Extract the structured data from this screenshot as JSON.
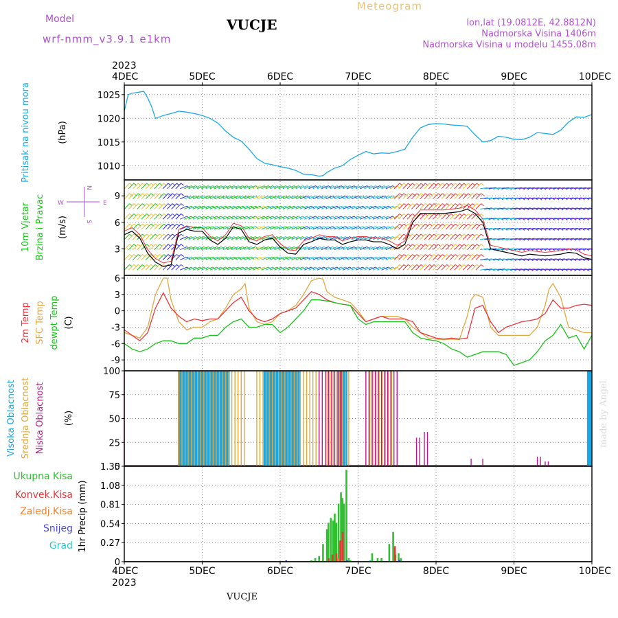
{
  "header": {
    "title": "VUCJE",
    "chart_kind": "Meteogram",
    "model_label": "Model",
    "model_name": "wrf-nmm_v3.9.1  e1km",
    "lonlat": "lon,lat (19.0812E, 42.8812N)",
    "altitude": "Nadmorska Visina 1406m",
    "altitude_model": "Nadmorska Visina u modelu 1455.08m",
    "footer_station": "VUCJE",
    "watermark": "made by Angel"
  },
  "colors": {
    "pressure": "#1aa7e6",
    "wind_label": "#19c21a",
    "temp2m": "#e8353a",
    "sfctemp": "#e0a740",
    "dewpt": "#19c21a",
    "cloud_high": "#1aa7e6",
    "cloud_mid": "#e0a740",
    "cloud_low": "#c0188c",
    "precip_total": "#2fbf2f",
    "precip_conv": "#e8353a",
    "precip_frozen": "#f08030",
    "precip_snow": "#4a4ad8",
    "precip_hail": "#30c8c8",
    "purple": "#b050d0"
  },
  "time_axis": {
    "year": "2023",
    "ticks": [
      "4DEC",
      "5DEC",
      "6DEC",
      "7DEC",
      "8DEC",
      "9DEC",
      "10DEC"
    ]
  },
  "chart_data": [
    {
      "type": "line",
      "panel": "pressure",
      "ylabel": "Pritisak na nivou mora",
      "unit": "(hPa)",
      "yticks": [
        1010,
        1015,
        1020,
        1025
      ],
      "ylim": [
        1007,
        1027
      ],
      "x_unit": "days since 4DEC 00UTC",
      "series": [
        {
          "name": "Pritisak na nivou mora",
          "x": [
            0,
            0.05,
            0.1,
            0.15,
            0.25,
            0.3,
            0.35,
            0.4,
            0.5,
            0.6,
            0.7,
            0.8,
            0.9,
            1.0,
            1.1,
            1.2,
            1.3,
            1.4,
            1.5,
            1.6,
            1.7,
            1.8,
            1.9,
            2.0,
            2.1,
            2.2,
            2.3,
            2.4,
            2.5,
            2.55,
            2.6,
            2.7,
            2.8,
            2.9,
            3.0,
            3.1,
            3.2,
            3.3,
            3.4,
            3.5,
            3.6,
            3.7,
            3.8,
            3.9,
            4.0,
            4.1,
            4.2,
            4.3,
            4.4,
            4.5,
            4.6,
            4.7,
            4.8,
            4.9,
            5.0,
            5.1,
            5.2,
            5.3,
            5.4,
            5.5,
            5.6,
            5.7,
            5.8,
            5.9,
            6.0
          ],
          "y": [
            1021.5,
            1025.0,
            1025.3,
            1025.4,
            1025.7,
            1024.3,
            1022.5,
            1020.0,
            1020.6,
            1021.0,
            1021.5,
            1021.3,
            1021.0,
            1020.6,
            1020.0,
            1019.0,
            1017.3,
            1016.0,
            1015.2,
            1013.5,
            1011.5,
            1010.5,
            1010.2,
            1009.8,
            1009.5,
            1009.0,
            1008.2,
            1008.1,
            1007.8,
            1007.9,
            1008.6,
            1009.5,
            1010.0,
            1011.3,
            1012.2,
            1013.0,
            1012.5,
            1012.7,
            1012.6,
            1013.0,
            1013.5,
            1016.0,
            1018.0,
            1018.7,
            1018.9,
            1018.8,
            1018.6,
            1018.5,
            1018.3,
            1016.5,
            1015.0,
            1015.3,
            1016.2,
            1016.0,
            1015.6,
            1015.5,
            1016.0,
            1017.0,
            1016.8,
            1016.6,
            1017.5,
            1019.2,
            1020.3,
            1020.2,
            1020.8
          ]
        }
      ]
    },
    {
      "type": "line",
      "panel": "wind",
      "ylabel": "10m Vjetar Brzina i Pravac",
      "unit": "(m/s)",
      "yticks": [
        3,
        6,
        9
      ],
      "ylim": [
        0,
        10.8
      ],
      "compass_labels": {
        "n": "N",
        "s": "S",
        "w": "W",
        "e": "E"
      },
      "series": [
        {
          "name": "speed",
          "x": [
            0,
            0.1,
            0.2,
            0.3,
            0.4,
            0.5,
            0.6,
            0.7,
            0.8,
            0.9,
            1.0,
            1.1,
            1.2,
            1.3,
            1.4,
            1.5,
            1.6,
            1.7,
            1.8,
            1.9,
            2.0,
            2.1,
            2.2,
            2.3,
            2.4,
            2.5,
            2.6,
            2.7,
            2.8,
            2.9,
            3.0,
            3.1,
            3.2,
            3.3,
            3.4,
            3.5,
            3.6,
            3.7,
            3.8,
            3.9,
            4.0,
            4.1,
            4.2,
            4.3,
            4.4,
            4.5,
            4.6,
            4.7,
            4.8,
            4.9,
            5.0,
            5.1,
            5.2,
            5.3,
            5.4,
            5.5,
            5.6,
            5.7,
            5.8,
            5.9,
            6.0
          ],
          "y": [
            4.6,
            5.0,
            4.2,
            2.5,
            1.5,
            1.0,
            1.2,
            4.8,
            5.2,
            5.0,
            5.0,
            4.0,
            3.5,
            4.2,
            5.5,
            5.2,
            3.8,
            3.5,
            4.0,
            4.2,
            3.2,
            2.5,
            2.4,
            3.5,
            3.8,
            4.2,
            4.0,
            4.0,
            3.5,
            3.8,
            4.0,
            4.0,
            3.8,
            3.8,
            3.5,
            3.0,
            3.5,
            6.0,
            7.0,
            7.0,
            7.0,
            7.0,
            7.1,
            7.2,
            7.5,
            7.0,
            6.0,
            3.0,
            2.8,
            2.6,
            2.4,
            2.2,
            2.4,
            2.3,
            2.2,
            2.3,
            2.4,
            2.6,
            2.5,
            2.0,
            1.8
          ]
        }
      ]
    },
    {
      "type": "line",
      "panel": "temperature",
      "ylabel": "2m Temp / SFC Temp / dewpt Temp",
      "unit": "(C)",
      "yticks": [
        -9,
        -6,
        -3,
        0,
        3,
        6
      ],
      "ylim": [
        -11,
        6.5
      ],
      "series": [
        {
          "name": "2m Temp",
          "x": [
            0,
            0.1,
            0.2,
            0.3,
            0.4,
            0.5,
            0.6,
            0.7,
            0.8,
            0.9,
            1.0,
            1.1,
            1.2,
            1.3,
            1.4,
            1.5,
            1.6,
            1.7,
            1.8,
            1.9,
            2.0,
            2.1,
            2.2,
            2.3,
            2.4,
            2.5,
            2.6,
            2.7,
            2.8,
            2.9,
            3.0,
            3.1,
            3.2,
            3.3,
            3.4,
            3.5,
            3.6,
            3.7,
            3.8,
            3.9,
            4.0,
            4.1,
            4.2,
            4.3,
            4.4,
            4.5,
            4.6,
            4.7,
            4.8,
            4.9,
            5.0,
            5.1,
            5.2,
            5.3,
            5.4,
            5.5,
            5.6,
            5.7,
            5.8,
            5.9,
            6.0
          ],
          "y": [
            -3.5,
            -4.5,
            -5.5,
            -4.0,
            0.5,
            3.3,
            0.5,
            -1.0,
            -2.0,
            -1.5,
            -1.8,
            -1.5,
            -1.5,
            0.0,
            1.5,
            2.5,
            0.0,
            -1.5,
            -2.0,
            -1.5,
            -0.5,
            0.0,
            0.5,
            2.0,
            3.5,
            3.0,
            2.0,
            1.5,
            1.2,
            1.0,
            -0.5,
            -2.0,
            -1.5,
            -1.0,
            -1.5,
            -1.5,
            -1.5,
            -2.0,
            -4.0,
            -4.5,
            -5.0,
            -5.2,
            -5.0,
            -5.2,
            -5.0,
            0.5,
            1.0,
            -2.0,
            -4.0,
            -3.0,
            -2.5,
            -2.0,
            -1.8,
            -1.5,
            -0.5,
            2.0,
            0.5,
            0.5,
            1.0,
            1.2,
            1.0
          ]
        },
        {
          "name": "SFC Temp",
          "x": [
            0,
            0.1,
            0.2,
            0.3,
            0.4,
            0.5,
            0.55,
            0.6,
            0.7,
            0.8,
            0.9,
            1.0,
            1.1,
            1.2,
            1.3,
            1.4,
            1.5,
            1.55,
            1.6,
            1.7,
            1.8,
            1.9,
            2.0,
            2.1,
            2.2,
            2.3,
            2.4,
            2.5,
            2.55,
            2.6,
            2.7,
            2.8,
            2.9,
            3.0,
            3.1,
            3.2,
            3.3,
            3.4,
            3.5,
            3.6,
            3.7,
            3.8,
            3.9,
            4.0,
            4.1,
            4.2,
            4.3,
            4.4,
            4.45,
            4.5,
            4.6,
            4.7,
            4.8,
            4.9,
            5.0,
            5.1,
            5.2,
            5.3,
            5.4,
            5.45,
            5.5,
            5.6,
            5.7,
            5.8,
            5.9,
            6.0
          ],
          "y": [
            -4.0,
            -4.5,
            -5.0,
            -3.0,
            3.0,
            6.0,
            6.0,
            2.0,
            -2.0,
            -3.5,
            -3.0,
            -3.0,
            -2.0,
            -1.5,
            0.5,
            3.0,
            4.0,
            5.0,
            0.5,
            -2.0,
            -2.5,
            -2.0,
            -0.5,
            0.0,
            1.0,
            3.0,
            5.5,
            6.0,
            5.8,
            3.5,
            2.5,
            2.0,
            1.5,
            0.0,
            -2.0,
            -1.5,
            -1.0,
            -1.0,
            -1.0,
            -1.5,
            -3.0,
            -4.0,
            -5.0,
            -5.2,
            -5.3,
            -5.2,
            -5.3,
            -1.0,
            2.0,
            3.0,
            2.5,
            -3.0,
            -4.5,
            -4.5,
            -4.5,
            -4.5,
            -4.5,
            -3.0,
            1.0,
            4.0,
            5.0,
            2.5,
            -3.0,
            -3.5,
            -4.0,
            -4.0
          ]
        },
        {
          "name": "dewpt Temp",
          "x": [
            0,
            0.1,
            0.2,
            0.3,
            0.4,
            0.5,
            0.6,
            0.7,
            0.8,
            0.9,
            1.0,
            1.1,
            1.2,
            1.3,
            1.4,
            1.5,
            1.6,
            1.7,
            1.8,
            1.9,
            2.0,
            2.1,
            2.2,
            2.3,
            2.4,
            2.5,
            2.6,
            2.7,
            2.8,
            2.9,
            3.0,
            3.1,
            3.2,
            3.3,
            3.4,
            3.5,
            3.6,
            3.7,
            3.8,
            3.9,
            4.0,
            4.1,
            4.2,
            4.3,
            4.4,
            4.5,
            4.6,
            4.7,
            4.8,
            4.9,
            5.0,
            5.1,
            5.2,
            5.3,
            5.4,
            5.5,
            5.6,
            5.7,
            5.8,
            5.9,
            6.0
          ],
          "y": [
            -6.0,
            -7.0,
            -7.5,
            -7.0,
            -6.0,
            -5.5,
            -5.5,
            -6.0,
            -6.0,
            -5.0,
            -5.0,
            -4.5,
            -4.5,
            -3.0,
            -2.0,
            -1.5,
            -3.0,
            -3.0,
            -2.5,
            -2.5,
            -4.0,
            -3.0,
            -1.5,
            0.0,
            2.0,
            2.0,
            1.8,
            1.5,
            1.2,
            1.0,
            -1.5,
            -2.5,
            -2.0,
            -2.0,
            -2.0,
            -2.0,
            -2.0,
            -4.0,
            -5.0,
            -5.3,
            -5.5,
            -6.0,
            -7.0,
            -7.5,
            -8.5,
            -8.0,
            -7.5,
            -7.5,
            -7.5,
            -8.0,
            -10.0,
            -9.5,
            -9.0,
            -7.5,
            -5.5,
            -4.5,
            -2.5,
            -5.0,
            -4.5,
            -7.0,
            -4.5
          ]
        }
      ]
    },
    {
      "type": "bar",
      "panel": "cloud",
      "ylabel": "Visoka Oblacnost / Srednja Oblacnost / Niska Oblacnost",
      "unit": "(%)",
      "yticks": [
        0,
        25,
        50,
        75,
        100
      ],
      "ylim": [
        0,
        100
      ],
      "series": [
        {
          "name": "Visoka Oblacnost",
          "spans": [
            [
              0.7,
              1.35,
              100
            ],
            [
              1.8,
              2.25,
              100
            ],
            [
              2.75,
              2.85,
              100
            ],
            [
              5.95,
              6.0,
              100
            ]
          ]
        },
        {
          "name": "Srednja Oblacnost",
          "spans": [
            [
              0.7,
              1.55,
              100
            ],
            [
              1.7,
              2.5,
              100
            ],
            [
              2.6,
              2.9,
              100
            ],
            [
              3.15,
              3.45,
              100
            ]
          ]
        },
        {
          "name": "Niska Oblacnost",
          "spans": [
            [
              0.0,
              0.01,
              100
            ],
            [
              2.5,
              2.8,
              100
            ],
            [
              3.1,
              3.5,
              100
            ],
            [
              3.75,
              3.8,
              30
            ],
            [
              3.85,
              3.9,
              36
            ],
            [
              4.45,
              4.45,
              8
            ],
            [
              4.6,
              4.6,
              8
            ],
            [
              5.3,
              5.35,
              10
            ],
            [
              5.4,
              5.45,
              5
            ]
          ]
        }
      ]
    },
    {
      "type": "bar",
      "panel": "precip",
      "ylabel": "1hr Precip",
      "unit": "(mm)",
      "yticks": [
        0,
        0.27,
        0.54,
        0.81,
        1.08,
        1.35
      ],
      "ylim": [
        0,
        1.35
      ],
      "series": [
        {
          "name": "Ukupna Kisa",
          "x": [
            2.4,
            2.45,
            2.5,
            2.55,
            2.6,
            2.62,
            2.65,
            2.68,
            2.7,
            2.72,
            2.75,
            2.78,
            2.8,
            2.82,
            2.85,
            2.88,
            2.9,
            3.18,
            3.25,
            3.3,
            3.4,
            3.45,
            3.48,
            3.52,
            3.55
          ],
          "y": [
            0.02,
            0.05,
            0.08,
            0.25,
            0.46,
            0.55,
            0.62,
            0.58,
            0.68,
            0.55,
            0.82,
            0.98,
            0.9,
            0.82,
            1.3,
            0.05,
            0.02,
            0.12,
            0.05,
            0.05,
            0.25,
            0.42,
            0.1,
            0.12,
            0.05
          ]
        },
        {
          "name": "Konvek.Kisa",
          "x": [
            2.6,
            2.65,
            2.7,
            2.75,
            2.78,
            3.45
          ],
          "y": [
            0.05,
            0.1,
            0.12,
            0.3,
            0.42,
            0.22
          ]
        },
        {
          "name": "Zaledj.Kisa",
          "x": [
            2.7,
            2.75,
            3.48
          ],
          "y": [
            0.05,
            0.02,
            0.03
          ]
        },
        {
          "name": "Snijeg",
          "x": [
            2.1,
            2.88,
            3.55
          ],
          "y": [
            0.02,
            0.02,
            0.03
          ]
        },
        {
          "name": "Grad",
          "x": [
            3.2
          ],
          "y": [
            0.02
          ]
        }
      ]
    }
  ]
}
